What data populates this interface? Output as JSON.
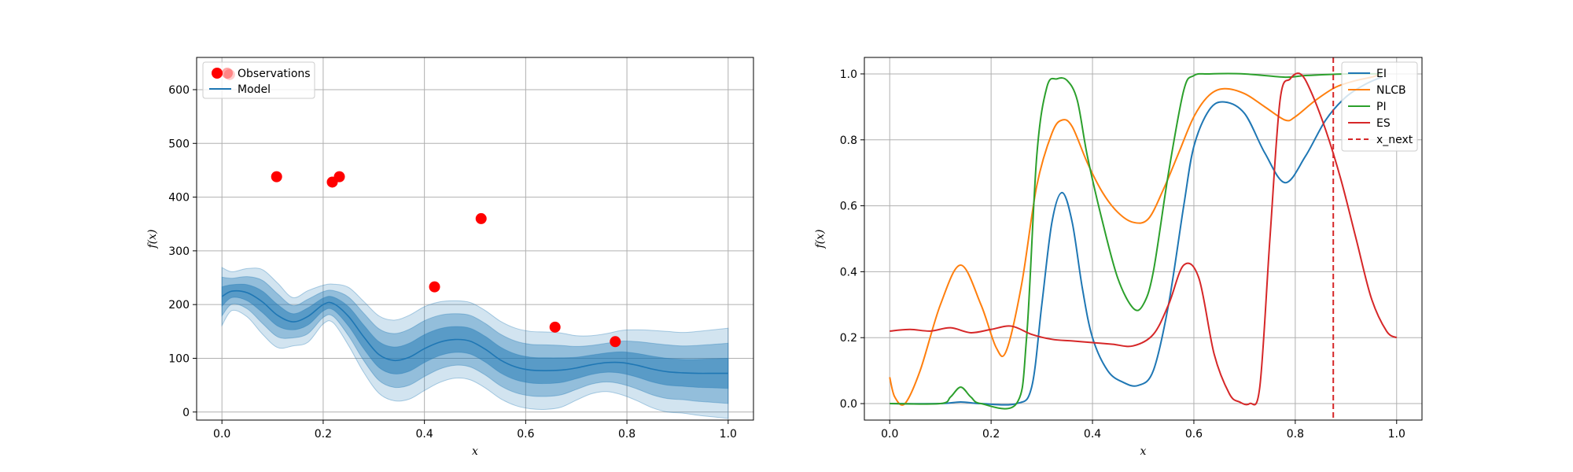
{
  "chart_data": [
    {
      "type": "line",
      "title": "",
      "xlabel": "x",
      "ylabel": "f(x)",
      "xlim": [
        -0.05,
        1.05
      ],
      "ylim": [
        -15,
        660
      ],
      "xticks": [
        0.0,
        0.2,
        0.4,
        0.6,
        0.8,
        1.0
      ],
      "xtick_labels": [
        "0.0",
        "0.2",
        "0.4",
        "0.6",
        "0.8",
        "1.0"
      ],
      "yticks": [
        0,
        100,
        200,
        300,
        400,
        500,
        600
      ],
      "ytick_labels": [
        "0",
        "100",
        "200",
        "300",
        "400",
        "500",
        "600"
      ],
      "grid": true,
      "legend": {
        "position": "upper-left",
        "entries": [
          "Observations",
          "Model"
        ]
      },
      "observations": {
        "name": "Observations",
        "color": "#ff0000",
        "x": [
          0.015,
          0.108,
          0.218,
          0.232,
          0.42,
          0.512,
          0.658,
          0.777
        ],
        "y": [
          628,
          438,
          428,
          438,
          233,
          360,
          158,
          131
        ]
      },
      "model": {
        "name": "Model",
        "color": "#1f77b4",
        "x": [
          0.0,
          0.02,
          0.05,
          0.08,
          0.11,
          0.14,
          0.17,
          0.2,
          0.22,
          0.25,
          0.28,
          0.31,
          0.34,
          0.37,
          0.4,
          0.43,
          0.46,
          0.49,
          0.52,
          0.55,
          0.58,
          0.61,
          0.64,
          0.67,
          0.7,
          0.73,
          0.76,
          0.79,
          0.82,
          0.85,
          0.88,
          0.91,
          0.94,
          0.97,
          1.0
        ],
        "mean": [
          215,
          225,
          222,
          205,
          180,
          168,
          178,
          200,
          202,
          178,
          140,
          107,
          96,
          102,
          118,
          130,
          135,
          132,
          117,
          97,
          84,
          78,
          77,
          78,
          82,
          88,
          92,
          92,
          87,
          80,
          75,
          73,
          72,
          72,
          72
        ],
        "std": [
          18,
          12,
          15,
          20,
          20,
          15,
          16,
          12,
          12,
          18,
          22,
          24,
          25,
          26,
          26,
          25,
          24,
          24,
          24,
          24,
          24,
          24,
          24,
          23,
          20,
          18,
          18,
          20,
          22,
          24,
          25,
          25,
          26,
          27,
          28
        ],
        "bands_sigma": [
          1,
          2,
          3
        ]
      }
    },
    {
      "type": "line",
      "title": "",
      "xlabel": "x",
      "ylabel": "f(x)",
      "xlim": [
        -0.05,
        1.05
      ],
      "ylim": [
        -0.05,
        1.05
      ],
      "xticks": [
        0.0,
        0.2,
        0.4,
        0.6,
        0.8,
        1.0
      ],
      "xtick_labels": [
        "0.0",
        "0.2",
        "0.4",
        "0.6",
        "0.8",
        "1.0"
      ],
      "yticks": [
        0.0,
        0.2,
        0.4,
        0.6,
        0.8,
        1.0
      ],
      "ytick_labels": [
        "0.0",
        "0.2",
        "0.4",
        "0.6",
        "0.8",
        "1.0"
      ],
      "grid": true,
      "legend": {
        "position": "upper-right",
        "entries": [
          "EI",
          "NLCB",
          "PI",
          "ES",
          "x_next"
        ]
      },
      "x_next": {
        "name": "x_next",
        "x": 0.875,
        "color": "#d62728"
      },
      "series": [
        {
          "name": "EI",
          "color": "#1f77b4",
          "x": [
            0.0,
            0.1,
            0.14,
            0.18,
            0.25,
            0.28,
            0.3,
            0.32,
            0.34,
            0.36,
            0.38,
            0.4,
            0.43,
            0.46,
            0.49,
            0.52,
            0.55,
            0.58,
            0.6,
            0.63,
            0.66,
            0.7,
            0.74,
            0.78,
            0.82,
            0.86,
            0.9,
            0.94,
            0.97
          ],
          "values": [
            0.0,
            0.0,
            0.005,
            0.0,
            0.0,
            0.05,
            0.3,
            0.55,
            0.64,
            0.55,
            0.35,
            0.2,
            0.1,
            0.065,
            0.055,
            0.1,
            0.3,
            0.6,
            0.78,
            0.89,
            0.915,
            0.88,
            0.76,
            0.67,
            0.75,
            0.86,
            0.93,
            0.97,
            0.99
          ]
        },
        {
          "name": "NLCB",
          "color": "#ff7f0e",
          "x": [
            0.0,
            0.01,
            0.03,
            0.06,
            0.1,
            0.14,
            0.18,
            0.21,
            0.23,
            0.26,
            0.29,
            0.32,
            0.34,
            0.36,
            0.39,
            0.42,
            0.45,
            0.48,
            0.51,
            0.54,
            0.57,
            0.6,
            0.63,
            0.66,
            0.7,
            0.74,
            0.78,
            0.8,
            0.84,
            0.88,
            0.92,
            0.95,
            0.97
          ],
          "values": [
            0.08,
            0.02,
            0.0,
            0.1,
            0.3,
            0.42,
            0.3,
            0.17,
            0.16,
            0.36,
            0.66,
            0.82,
            0.86,
            0.84,
            0.73,
            0.64,
            0.58,
            0.55,
            0.56,
            0.65,
            0.76,
            0.87,
            0.935,
            0.955,
            0.94,
            0.9,
            0.86,
            0.87,
            0.92,
            0.96,
            0.98,
            0.99,
            1.0
          ]
        },
        {
          "name": "PI",
          "color": "#2ca02c",
          "x": [
            0.0,
            0.1,
            0.12,
            0.14,
            0.16,
            0.18,
            0.25,
            0.27,
            0.29,
            0.31,
            0.33,
            0.35,
            0.37,
            0.39,
            0.42,
            0.45,
            0.48,
            0.5,
            0.52,
            0.55,
            0.58,
            0.6,
            0.63,
            0.7,
            0.78,
            0.82,
            0.9,
            0.97
          ],
          "values": [
            0.0,
            0.0,
            0.02,
            0.05,
            0.02,
            0.0,
            0.0,
            0.2,
            0.75,
            0.96,
            0.985,
            0.98,
            0.92,
            0.75,
            0.55,
            0.38,
            0.29,
            0.3,
            0.4,
            0.7,
            0.95,
            0.995,
            1.0,
            1.0,
            0.99,
            0.995,
            1.0,
            1.0
          ]
        },
        {
          "name": "ES",
          "color": "#d62728",
          "x": [
            0.0,
            0.04,
            0.08,
            0.12,
            0.16,
            0.2,
            0.24,
            0.28,
            0.32,
            0.36,
            0.4,
            0.44,
            0.48,
            0.52,
            0.55,
            0.58,
            0.61,
            0.64,
            0.67,
            0.69,
            0.71,
            0.73,
            0.75,
            0.77,
            0.79,
            0.81,
            0.83,
            0.86,
            0.89,
            0.92,
            0.95,
            0.98,
            1.0
          ],
          "values": [
            0.22,
            0.225,
            0.22,
            0.23,
            0.215,
            0.225,
            0.235,
            0.21,
            0.195,
            0.19,
            0.185,
            0.18,
            0.175,
            0.21,
            0.3,
            0.42,
            0.38,
            0.15,
            0.03,
            0.005,
            0.0,
            0.05,
            0.5,
            0.92,
            0.985,
            1.0,
            0.95,
            0.83,
            0.68,
            0.5,
            0.32,
            0.22,
            0.2
          ]
        }
      ]
    }
  ]
}
